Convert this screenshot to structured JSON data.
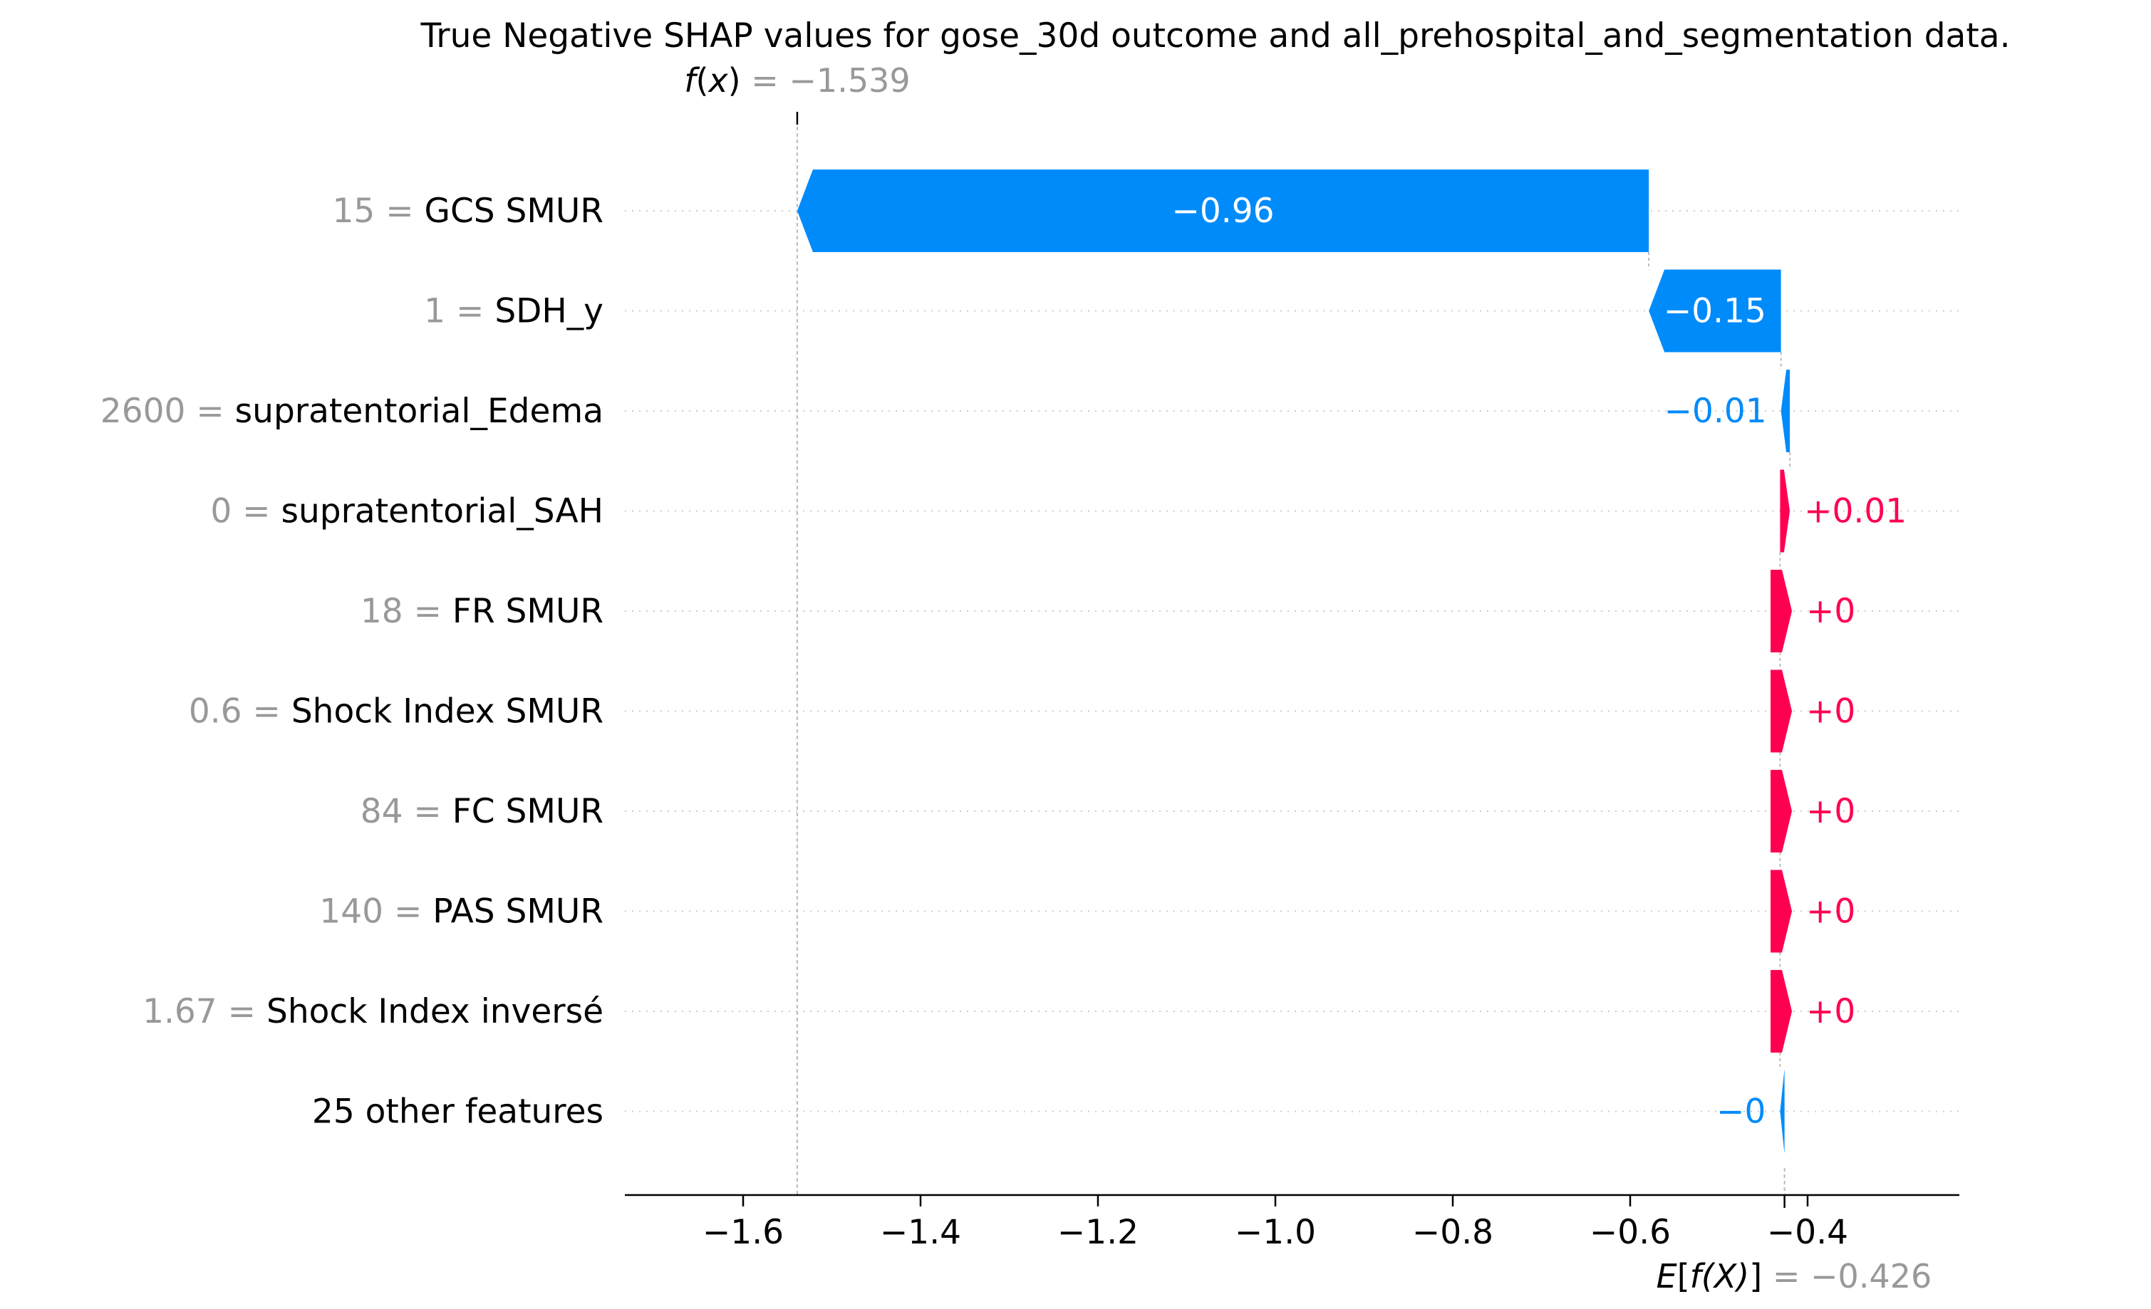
{
  "chart_data": {
    "type": "bar",
    "subtype": "waterfall",
    "title": "True Negative SHAP values for gose_30d outcome and all_prehospital_and_segmentation data.",
    "fx": {
      "label_prefix": "f",
      "label_var": "x",
      "label_suffix": " = −1.539",
      "value": -1.539
    },
    "efx": {
      "label_prefix": "E",
      "label_var": "f(X)",
      "label_suffix": " = −0.426",
      "value": -0.426
    },
    "xlim": [
      -1.74,
      -0.24
    ],
    "xticks": [
      -1.6,
      -1.4,
      -1.2,
      -1.0,
      -0.8,
      -0.6,
      -0.4
    ],
    "xtick_labels": [
      "−1.6",
      "−1.4",
      "−1.2",
      "−1.0",
      "−0.8",
      "−0.6",
      "−0.4"
    ],
    "grid": "horizontal dotted",
    "features": [
      {
        "value": "15",
        "name": "GCS SMUR ",
        "start": -0.579,
        "end": -1.539,
        "label": "−0.96",
        "sign": "neg"
      },
      {
        "value": "1",
        "name": "SDH_y",
        "start": -0.43,
        "end": -0.579,
        "label": "−0.15",
        "sign": "neg"
      },
      {
        "value": "2600",
        "name": "supratentorial_Edema",
        "start": -0.42,
        "end": -0.43,
        "label": "−0.01",
        "sign": "neg"
      },
      {
        "value": "0",
        "name": "supratentorial_SAH",
        "start": -0.431,
        "end": -0.42,
        "label": "+0.01",
        "sign": "pos"
      },
      {
        "value": "18",
        "name": "FR SMUR",
        "start": -0.431,
        "end": -0.43,
        "label": "+0",
        "sign": "pos"
      },
      {
        "value": "0.6",
        "name": "Shock Index SMUR",
        "start": -0.431,
        "end": -0.43,
        "label": "+0",
        "sign": "pos"
      },
      {
        "value": "84",
        "name": "FC SMUR ",
        "start": -0.431,
        "end": -0.43,
        "label": "+0",
        "sign": "pos"
      },
      {
        "value": "140",
        "name": "PAS  SMUR ",
        "start": -0.431,
        "end": -0.43,
        "label": "+0",
        "sign": "pos"
      },
      {
        "value": "1.67",
        "name": "Shock Index inversé",
        "start": -0.431,
        "end": -0.43,
        "label": "+0",
        "sign": "pos"
      },
      {
        "value": "",
        "name": "25 other features",
        "start": -0.426,
        "end": -0.431,
        "label": "−0",
        "sign": "neg"
      }
    ],
    "colors": {
      "positive": "#ff0051",
      "negative": "#008bfb",
      "gray": "#999999",
      "text": "#000000"
    }
  }
}
